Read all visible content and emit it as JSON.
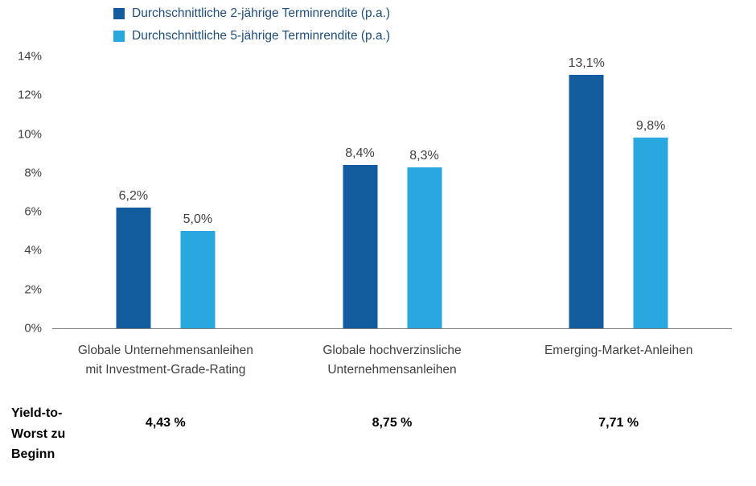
{
  "legend": {
    "items": [
      {
        "label": "Durchschnittliche 2-jährige Terminrendite (p.a.)",
        "color": "#135d9f"
      },
      {
        "label": "Durchschnittliche 5-jährige Terminrendite (p.a.)",
        "color": "#29a8e0"
      }
    ]
  },
  "chart_data": {
    "type": "bar",
    "title": "",
    "xlabel": "",
    "ylabel": "",
    "categories": [
      "Globale Unternehmensanleihen mit Investment-Grade-Rating",
      "Globale hochverzinsliche Unternehmensanleihen",
      "Emerging-Market-Anleihen"
    ],
    "series": [
      {
        "name": "Durchschnittliche 2-jährige Terminrendite (p.a.)",
        "color": "#135d9f",
        "values": [
          6.2,
          8.4,
          13.1
        ],
        "labels": [
          "6,2%",
          "8,4%",
          "13,1%"
        ]
      },
      {
        "name": "Durchschnittliche 5-jährige Terminrendite (p.a.)",
        "color": "#29a8e0",
        "values": [
          5.0,
          8.3,
          9.8
        ],
        "labels": [
          "5,0%",
          "8,3%",
          "9,8%"
        ]
      }
    ],
    "ylim": [
      0,
      14
    ],
    "ytick_step": 2,
    "ytick_labels": [
      "0%",
      "2%",
      "4%",
      "6%",
      "8%",
      "10%",
      "12%",
      "14%"
    ],
    "grid": false,
    "legend_position": "top-left"
  },
  "footer": {
    "row_label": "Yield-to-Worst zu Beginn",
    "values": [
      "4,43 %",
      "8,75 %",
      "7,71 %"
    ]
  }
}
